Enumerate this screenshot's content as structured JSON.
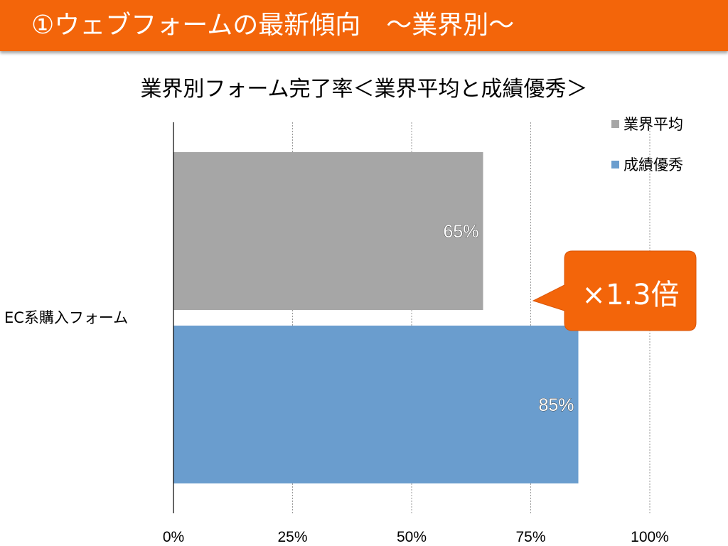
{
  "header": {
    "title": "①ウェブフォームの最新傾向　～業界別～"
  },
  "colors": {
    "header_background": "#f3650a",
    "series_average": "#a6a6a6",
    "series_excellent": "#6a9dce",
    "callout": "#f3650a"
  },
  "callout": {
    "text": "×1.3倍"
  },
  "chart_data": {
    "type": "bar",
    "orientation": "horizontal",
    "title": "業界別フォーム完了率＜業界平均と成績優秀＞",
    "categories": [
      "EC系購入フォーム"
    ],
    "series": [
      {
        "name": "業界平均",
        "values": [
          65
        ],
        "data_labels": [
          "65%"
        ],
        "color": "#a6a6a6"
      },
      {
        "name": "成績優秀",
        "values": [
          85
        ],
        "data_labels": [
          "85%"
        ],
        "color": "#6a9dce"
      }
    ],
    "xlim": [
      0,
      100
    ],
    "x_ticks": [
      0,
      25,
      50,
      75,
      100
    ],
    "x_tick_labels": [
      "0%",
      "25%",
      "50%",
      "75%",
      "100%"
    ],
    "xlabel": "",
    "ylabel": "",
    "grid": "vertical-dashed",
    "legend_position": "top-right"
  }
}
